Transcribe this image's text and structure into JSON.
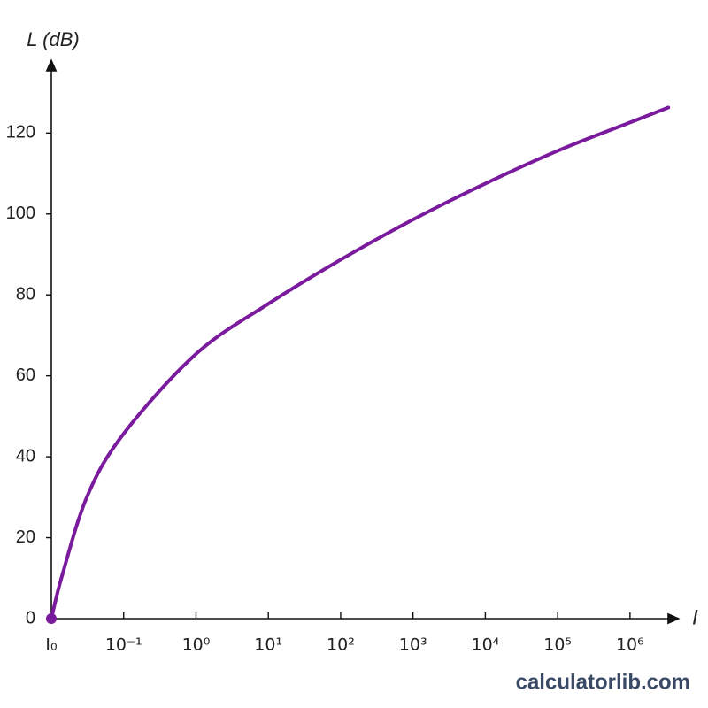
{
  "chart_data": {
    "type": "line",
    "y_label": "L (dB)",
    "x_label": "I",
    "watermark": "calculatorlib.com",
    "x": [
      0,
      0.15,
      0.5,
      1,
      2,
      3,
      4,
      5,
      6,
      7,
      8,
      8.53
    ],
    "series": [
      {
        "name": "L",
        "color": "#7a1a9c",
        "values": [
          0,
          10.7,
          30.4,
          45.7,
          65.4,
          77.8,
          88.7,
          98.6,
          107.5,
          115.6,
          122.6,
          126.3
        ]
      }
    ],
    "xlim": [
      0,
      8.65
    ],
    "ylim": [
      0,
      138
    ],
    "xticks": [
      {
        "value": 0,
        "label": "I₀"
      },
      {
        "value": 1,
        "label": "10⁻¹"
      },
      {
        "value": 2,
        "label": "10⁰"
      },
      {
        "value": 3,
        "label": "10¹"
      },
      {
        "value": 4,
        "label": "10²"
      },
      {
        "value": 5,
        "label": "10³"
      },
      {
        "value": 6,
        "label": "10⁴"
      },
      {
        "value": 7,
        "label": "10⁵"
      },
      {
        "value": 8,
        "label": "10⁶"
      }
    ],
    "yticks": [
      0,
      20,
      40,
      60,
      80,
      100,
      120
    ],
    "grid": false
  }
}
